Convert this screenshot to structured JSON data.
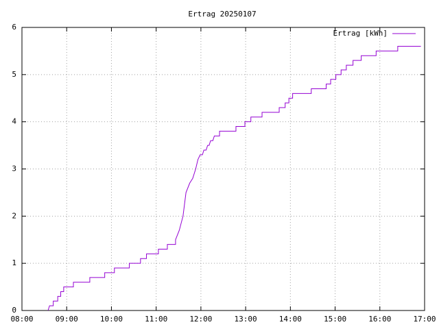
{
  "chart_data": {
    "type": "line",
    "title": "Ertrag 20250107",
    "series": [
      {
        "name": "Ertrag [kWh]",
        "color": "#9400d3",
        "x": [
          "08:35",
          "08:37",
          "08:42",
          "08:42",
          "08:48",
          "08:48",
          "08:52",
          "08:52",
          "08:56",
          "08:56",
          "09:09",
          "09:09",
          "09:31",
          "09:31",
          "09:51",
          "09:51",
          "10:04",
          "10:04",
          "10:24",
          "10:24",
          "10:39",
          "10:39",
          "10:47",
          "10:47",
          "11:03",
          "11:03",
          "11:15",
          "11:15",
          "11:26",
          "11:26",
          "11:31",
          "11:36",
          "11:40",
          "11:45",
          "11:49",
          "11:53",
          "11:56",
          "11:59",
          "12:02",
          "12:04",
          "12:07",
          "12:09",
          "12:11",
          "12:13",
          "12:16",
          "12:18",
          "12:25",
          "12:25",
          "12:47",
          "12:47",
          "12:59",
          "12:59",
          "13:07",
          "13:07",
          "13:22",
          "13:22",
          "13:45",
          "13:45",
          "13:53",
          "13:53",
          "13:58",
          "13:58",
          "14:03",
          "14:03",
          "14:28",
          "14:28",
          "14:48",
          "14:48",
          "14:54",
          "14:54",
          "15:01",
          "15:01",
          "15:08",
          "15:08",
          "15:15",
          "15:15",
          "15:24",
          "15:24",
          "15:35",
          "15:35",
          "15:55",
          "15:55",
          "16:24",
          "16:24",
          "16:55"
        ],
        "values": [
          0,
          0.1,
          0.1,
          0.2,
          0.2,
          0.3,
          0.3,
          0.4,
          0.4,
          0.5,
          0.5,
          0.6,
          0.6,
          0.7,
          0.7,
          0.8,
          0.8,
          0.9,
          0.9,
          1.0,
          1.0,
          1.1,
          1.1,
          1.2,
          1.2,
          1.3,
          1.3,
          1.4,
          1.4,
          1.5,
          1.7,
          2.0,
          2.5,
          2.7,
          2.8,
          3.0,
          3.2,
          3.3,
          3.3,
          3.4,
          3.4,
          3.5,
          3.5,
          3.6,
          3.6,
          3.7,
          3.7,
          3.8,
          3.8,
          3.9,
          3.9,
          4.0,
          4.0,
          4.1,
          4.1,
          4.2,
          4.2,
          4.3,
          4.3,
          4.4,
          4.4,
          4.5,
          4.5,
          4.6,
          4.6,
          4.7,
          4.7,
          4.8,
          4.8,
          4.9,
          4.9,
          5.0,
          5.0,
          5.1,
          5.1,
          5.2,
          5.2,
          5.3,
          5.3,
          5.4,
          5.4,
          5.5,
          5.5,
          5.6,
          5.6
        ]
      }
    ],
    "xlim": [
      "08:00",
      "17:00"
    ],
    "xticks": [
      "08:00",
      "09:00",
      "10:00",
      "11:00",
      "12:00",
      "13:00",
      "14:00",
      "15:00",
      "16:00",
      "17:00"
    ],
    "ylim": [
      0,
      6
    ],
    "yticks": [
      0,
      1,
      2,
      3,
      4,
      5,
      6
    ],
    "grid": true,
    "legend": "top-right"
  }
}
